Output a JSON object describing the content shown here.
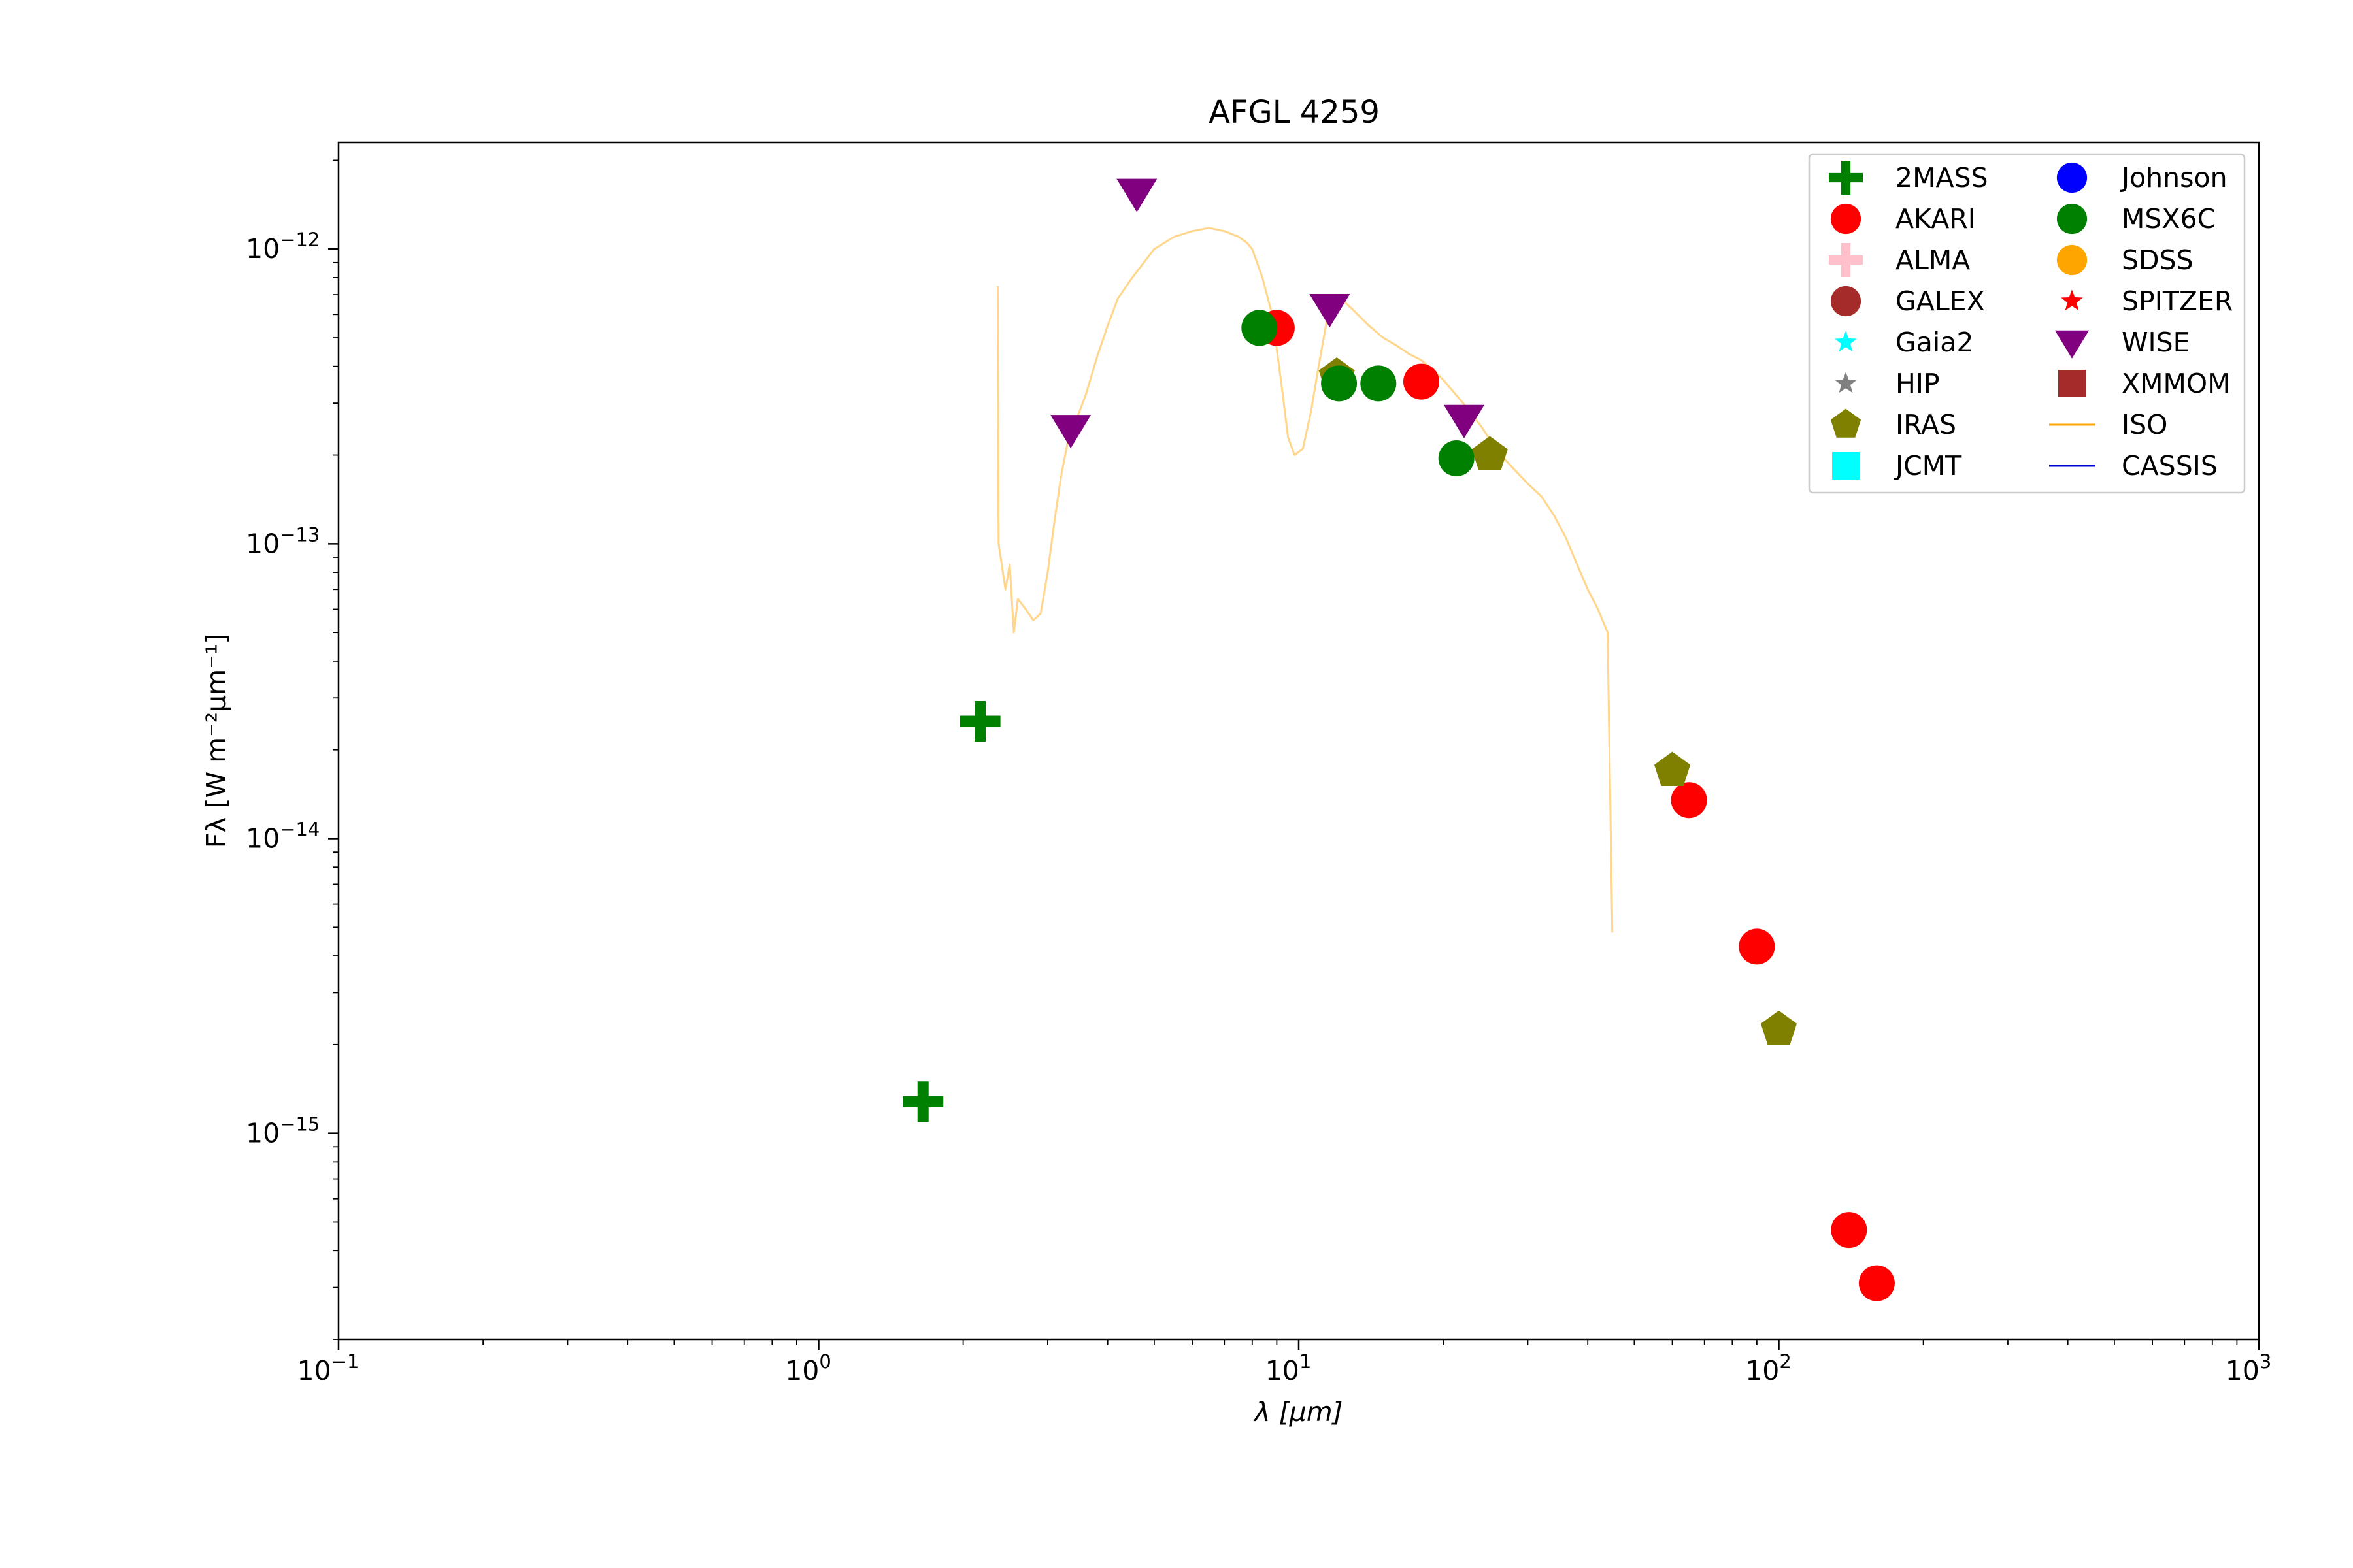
{
  "chart_data": {
    "type": "scatter",
    "title": "AFGL 4259",
    "xlabel": "λ [μm]",
    "ylabel": "Fλ [W m⁻²μm⁻¹]",
    "xscale": "log",
    "yscale": "log",
    "xlim": [
      0.1,
      1000
    ],
    "ylim": [
      2e-16,
      2.3e-12
    ],
    "grid": false,
    "legend_position": "top-right",
    "x_ticks": [
      {
        "value": 0.1,
        "base": "10",
        "exp": "−1"
      },
      {
        "value": 1,
        "base": "10",
        "exp": "0"
      },
      {
        "value": 10,
        "base": "10",
        "exp": "1"
      },
      {
        "value": 100,
        "base": "10",
        "exp": "2"
      },
      {
        "value": 1000,
        "base": "10",
        "exp": "3"
      }
    ],
    "y_ticks": [
      {
        "value": 1e-15,
        "base": "10",
        "exp": "−15"
      },
      {
        "value": 1e-14,
        "base": "10",
        "exp": "−14"
      },
      {
        "value": 1e-13,
        "base": "10",
        "exp": "−13"
      },
      {
        "value": 1e-12,
        "base": "10",
        "exp": "−12"
      }
    ],
    "series": [
      {
        "name": "2MASS",
        "marker": "plus",
        "color": "#008000",
        "points": [
          [
            1.65,
            1.28e-15
          ],
          [
            2.17,
            2.5e-14
          ]
        ]
      },
      {
        "name": "AKARI",
        "marker": "circle",
        "color": "#ff0000",
        "points": [
          [
            9.0,
            5.4e-13
          ],
          [
            18.0,
            3.55e-13
          ],
          [
            65.0,
            1.35e-14
          ],
          [
            90.0,
            4.3e-15
          ],
          [
            140.0,
            4.7e-16
          ],
          [
            160.0,
            3.1e-16
          ]
        ]
      },
      {
        "name": "ALMA",
        "marker": "plus",
        "color": "#ffc0cb",
        "points": []
      },
      {
        "name": "GALEX",
        "marker": "circle",
        "color": "#a52a2a",
        "points": []
      },
      {
        "name": "Gaia2",
        "marker": "star",
        "color": "#00ffff",
        "points": []
      },
      {
        "name": "HIP",
        "marker": "star",
        "color": "#808080",
        "points": []
      },
      {
        "name": "IRAS",
        "marker": "pentagon",
        "color": "#808000",
        "points": [
          [
            12.0,
            3.7e-13
          ],
          [
            25.0,
            2e-13
          ],
          [
            60.0,
            1.7e-14
          ],
          [
            100.0,
            2.25e-15
          ]
        ]
      },
      {
        "name": "JCMT",
        "marker": "square",
        "color": "#00ffff",
        "points": []
      },
      {
        "name": "Johnson",
        "marker": "circle",
        "color": "#0000ff",
        "points": []
      },
      {
        "name": "MSX6C",
        "marker": "circle",
        "color": "#008000",
        "points": [
          [
            8.28,
            5.4e-13
          ],
          [
            12.13,
            3.5e-13
          ],
          [
            14.65,
            3.5e-13
          ],
          [
            21.3,
            1.95e-13
          ]
        ]
      },
      {
        "name": "SDSS",
        "marker": "circle",
        "color": "#ffa500",
        "points": []
      },
      {
        "name": "SPITZER",
        "marker": "star",
        "color": "#ff0000",
        "points": []
      },
      {
        "name": "WISE",
        "marker": "triangle-down",
        "color": "#800080",
        "points": [
          [
            3.35,
            2.45e-13
          ],
          [
            4.6,
            1.55e-12
          ],
          [
            11.6,
            6.3e-13
          ],
          [
            22.1,
            2.65e-13
          ]
        ]
      },
      {
        "name": "XMMOM",
        "marker": "square",
        "color": "#a52a2a",
        "points": []
      },
      {
        "name": "ISO",
        "marker": "line",
        "color": "#ffa500",
        "points": [
          [
            2.36,
            7.5e-13
          ],
          [
            2.37,
            1e-13
          ],
          [
            2.45,
            7e-14
          ],
          [
            2.5,
            8.5e-14
          ],
          [
            2.55,
            5e-14
          ],
          [
            2.6,
            6.5e-14
          ],
          [
            2.7,
            6e-14
          ],
          [
            2.8,
            5.5e-14
          ],
          [
            2.9,
            5.8e-14
          ],
          [
            3.0,
            8e-14
          ],
          [
            3.1,
            1.2e-13
          ],
          [
            3.2,
            1.7e-13
          ],
          [
            3.3,
            2.2e-13
          ],
          [
            3.4,
            2.5e-13
          ],
          [
            3.6,
            3.2e-13
          ],
          [
            3.8,
            4.3e-13
          ],
          [
            4.0,
            5.5e-13
          ],
          [
            4.2,
            6.8e-13
          ],
          [
            4.5,
            8e-13
          ],
          [
            5.0,
            1e-12
          ],
          [
            5.5,
            1.1e-12
          ],
          [
            6.0,
            1.15e-12
          ],
          [
            6.5,
            1.18e-12
          ],
          [
            7.0,
            1.15e-12
          ],
          [
            7.5,
            1.1e-12
          ],
          [
            7.8,
            1.05e-12
          ],
          [
            8.0,
            1e-12
          ],
          [
            8.4,
            8e-13
          ],
          [
            8.8,
            6e-13
          ],
          [
            9.2,
            3.5e-13
          ],
          [
            9.5,
            2.3e-13
          ],
          [
            9.8,
            2e-13
          ],
          [
            10.2,
            2.1e-13
          ],
          [
            10.6,
            2.8e-13
          ],
          [
            11.0,
            4e-13
          ],
          [
            11.5,
            6e-13
          ],
          [
            12.0,
            7e-13
          ],
          [
            13.0,
            6.2e-13
          ],
          [
            14.0,
            5.5e-13
          ],
          [
            15.0,
            5e-13
          ],
          [
            16.0,
            4.7e-13
          ],
          [
            17.0,
            4.4e-13
          ],
          [
            18.0,
            4.2e-13
          ],
          [
            19.0,
            3.9e-13
          ],
          [
            20.0,
            3.6e-13
          ],
          [
            22.0,
            3e-13
          ],
          [
            24.0,
            2.5e-13
          ],
          [
            26.0,
            2.05e-13
          ],
          [
            28.0,
            1.8e-13
          ],
          [
            30.0,
            1.6e-13
          ],
          [
            32.0,
            1.45e-13
          ],
          [
            34.0,
            1.25e-13
          ],
          [
            36.0,
            1.05e-13
          ],
          [
            38.0,
            8.5e-14
          ],
          [
            40.0,
            7e-14
          ],
          [
            42.0,
            6e-14
          ],
          [
            44.0,
            5e-14
          ],
          [
            45.0,
            4.8e-15
          ]
        ]
      },
      {
        "name": "CASSIS",
        "marker": "line",
        "color": "#0000cd",
        "points": []
      }
    ]
  }
}
